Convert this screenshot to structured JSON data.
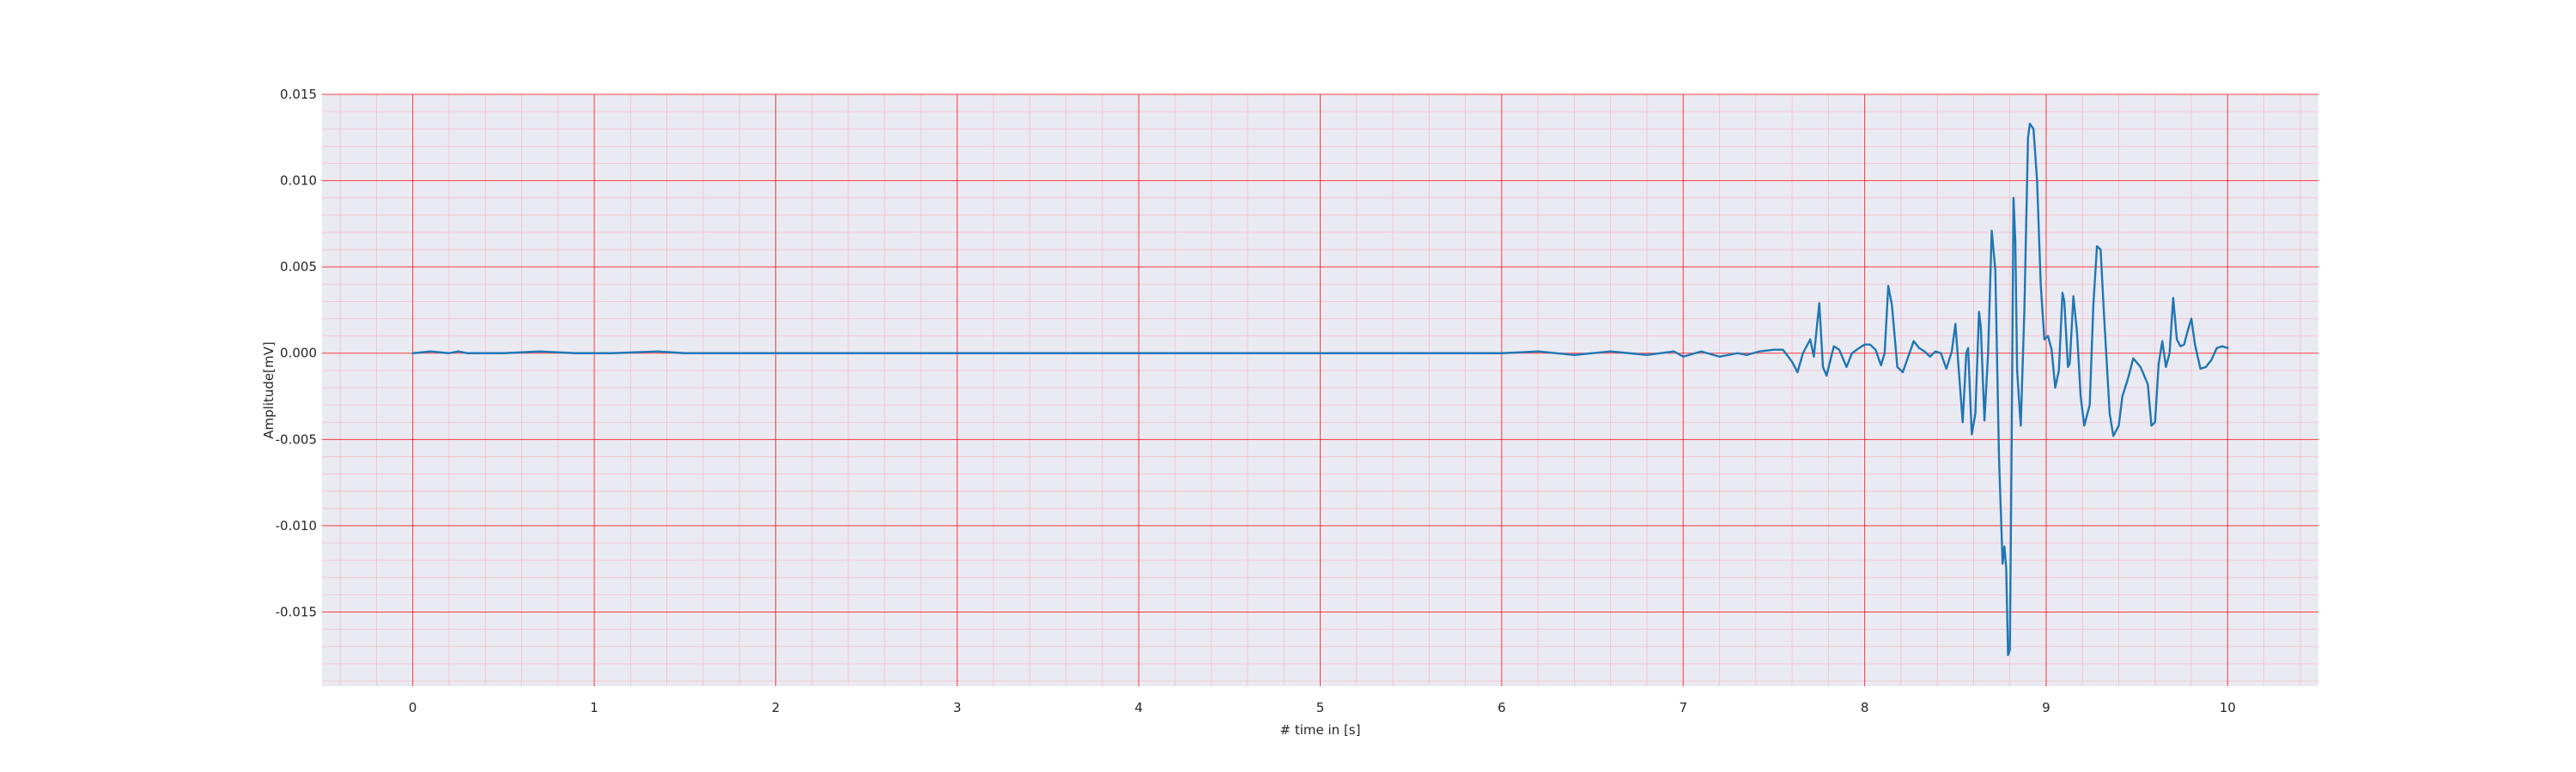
{
  "chart_data": {
    "type": "line",
    "title": "",
    "xlabel": "# time in [s]",
    "ylabel": "Amplitude[mV]",
    "xlim": [
      -0.5,
      10.5
    ],
    "ylim": [
      -0.0193,
      0.015
    ],
    "xticks": [
      0,
      1,
      2,
      3,
      4,
      5,
      6,
      7,
      8,
      9,
      10
    ],
    "xtick_labels": [
      "0",
      "1",
      "2",
      "3",
      "4",
      "5",
      "6",
      "7",
      "8",
      "9",
      "10"
    ],
    "yticks": [
      0.015,
      0.01,
      0.005,
      0.0,
      -0.005,
      -0.01,
      -0.015
    ],
    "ytick_labels": [
      "0.015",
      "0.010",
      "0.005",
      "0.000",
      "-0.005",
      "-0.010",
      "-0.015"
    ],
    "grid": "major and minor",
    "colors": {
      "background": "#eaeaf2",
      "major_grid": "#ff0000",
      "minor_grid": "#ff9aa8",
      "line": "#1f77b4"
    },
    "series": [
      {
        "points": [
          [
            0.0,
            0.0
          ],
          [
            0.1,
            0.0001
          ],
          [
            0.2,
            0.0
          ],
          [
            0.25,
            0.0001
          ],
          [
            0.3,
            0.0
          ],
          [
            0.5,
            0.0
          ],
          [
            0.7,
            0.0001
          ],
          [
            0.9,
            0.0
          ],
          [
            1.1,
            0.0
          ],
          [
            1.35,
            0.0001
          ],
          [
            1.5,
            0.0
          ],
          [
            2.0,
            0.0
          ],
          [
            2.5,
            0.0
          ],
          [
            3.0,
            0.0
          ],
          [
            3.5,
            0.0
          ],
          [
            4.0,
            0.0
          ],
          [
            4.5,
            0.0
          ],
          [
            5.0,
            0.0
          ],
          [
            5.5,
            0.0
          ],
          [
            6.0,
            0.0
          ],
          [
            6.2,
            0.0001
          ],
          [
            6.4,
            -0.0001
          ],
          [
            6.6,
            0.0001
          ],
          [
            6.8,
            -0.0001
          ],
          [
            6.95,
            0.0001
          ],
          [
            7.0,
            -0.0002
          ],
          [
            7.1,
            0.0001
          ],
          [
            7.2,
            -0.0002
          ],
          [
            7.3,
            0.0
          ],
          [
            7.35,
            -0.0001
          ],
          [
            7.42,
            0.0001
          ],
          [
            7.5,
            0.0002
          ],
          [
            7.55,
            0.0002
          ],
          [
            7.6,
            -0.0005
          ],
          [
            7.63,
            -0.0011
          ],
          [
            7.66,
            0.0
          ],
          [
            7.7,
            0.0008
          ],
          [
            7.72,
            -0.0002
          ],
          [
            7.75,
            0.0029
          ],
          [
            7.77,
            -0.0008
          ],
          [
            7.79,
            -0.0013
          ],
          [
            7.83,
            0.0004
          ],
          [
            7.86,
            0.0002
          ],
          [
            7.9,
            -0.0008
          ],
          [
            7.93,
            0.0
          ],
          [
            7.97,
            0.0003
          ],
          [
            8.0,
            0.0005
          ],
          [
            8.03,
            0.0005
          ],
          [
            8.06,
            0.0002
          ],
          [
            8.09,
            -0.0007
          ],
          [
            8.11,
            0.0
          ],
          [
            8.13,
            0.0039
          ],
          [
            8.15,
            0.0028
          ],
          [
            8.18,
            -0.0008
          ],
          [
            8.21,
            -0.0011
          ],
          [
            8.24,
            -0.0002
          ],
          [
            8.27,
            0.0007
          ],
          [
            8.3,
            0.0003
          ],
          [
            8.33,
            0.0001
          ],
          [
            8.36,
            -0.0002
          ],
          [
            8.39,
            0.0001
          ],
          [
            8.42,
            0.0
          ],
          [
            8.45,
            -0.0009
          ],
          [
            8.48,
            0.0001
          ],
          [
            8.5,
            0.0017
          ],
          [
            8.52,
            -0.0012
          ],
          [
            8.54,
            -0.004
          ],
          [
            8.56,
            0.0
          ],
          [
            8.57,
            0.0003
          ],
          [
            8.59,
            -0.0047
          ],
          [
            8.61,
            -0.0035
          ],
          [
            8.63,
            0.0024
          ],
          [
            8.64,
            0.0015
          ],
          [
            8.66,
            -0.0039
          ],
          [
            8.68,
            0.0
          ],
          [
            8.7,
            0.0071
          ],
          [
            8.72,
            0.0048
          ],
          [
            8.74,
            -0.006
          ],
          [
            8.76,
            -0.0122
          ],
          [
            8.77,
            -0.0112
          ],
          [
            8.78,
            -0.0125
          ],
          [
            8.79,
            -0.0175
          ],
          [
            8.8,
            -0.0172
          ],
          [
            8.81,
            -0.005
          ],
          [
            8.82,
            0.009
          ],
          [
            8.83,
            0.0065
          ],
          [
            8.84,
            -0.001
          ],
          [
            8.86,
            -0.0042
          ],
          [
            8.88,
            0.0025
          ],
          [
            8.9,
            0.0125
          ],
          [
            8.91,
            0.0133
          ],
          [
            8.93,
            0.013
          ],
          [
            8.95,
            0.01
          ],
          [
            8.97,
            0.004
          ],
          [
            8.99,
            0.0008
          ],
          [
            9.01,
            0.001
          ],
          [
            9.03,
            0.0002
          ],
          [
            9.05,
            -0.002
          ],
          [
            9.07,
            -0.001
          ],
          [
            9.09,
            0.0035
          ],
          [
            9.1,
            0.003
          ],
          [
            9.12,
            -0.0008
          ],
          [
            9.13,
            -0.0006
          ],
          [
            9.15,
            0.0033
          ],
          [
            9.17,
            0.0012
          ],
          [
            9.19,
            -0.0025
          ],
          [
            9.21,
            -0.0042
          ],
          [
            9.24,
            -0.003
          ],
          [
            9.26,
            0.0028
          ],
          [
            9.28,
            0.0062
          ],
          [
            9.3,
            0.006
          ],
          [
            9.32,
            0.002
          ],
          [
            9.35,
            -0.0035
          ],
          [
            9.37,
            -0.0048
          ],
          [
            9.4,
            -0.0042
          ],
          [
            9.42,
            -0.0025
          ],
          [
            9.45,
            -0.0015
          ],
          [
            9.48,
            -0.0003
          ],
          [
            9.52,
            -0.0008
          ],
          [
            9.56,
            -0.0018
          ],
          [
            9.58,
            -0.0042
          ],
          [
            9.6,
            -0.004
          ],
          [
            9.62,
            -0.0006
          ],
          [
            9.64,
            0.0007
          ],
          [
            9.66,
            -0.0008
          ],
          [
            9.68,
            0.0
          ],
          [
            9.7,
            0.0032
          ],
          [
            9.72,
            0.0008
          ],
          [
            9.74,
            0.0004
          ],
          [
            9.76,
            0.0005
          ],
          [
            9.78,
            0.0013
          ],
          [
            9.8,
            0.002
          ],
          [
            9.82,
            0.0005
          ],
          [
            9.85,
            -0.0009
          ],
          [
            9.88,
            -0.0008
          ],
          [
            9.91,
            -0.0004
          ],
          [
            9.94,
            0.0003
          ],
          [
            9.97,
            0.0004
          ],
          [
            10.0,
            0.0003
          ]
        ]
      }
    ]
  }
}
